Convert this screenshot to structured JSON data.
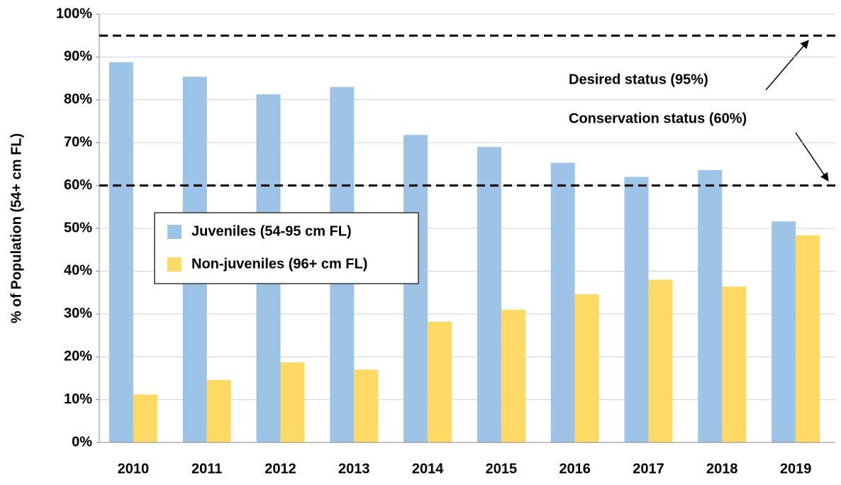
{
  "chart_data": {
    "type": "bar",
    "y_label": "% of Population (54+ cm FL)",
    "categories": [
      "2010",
      "2011",
      "2012",
      "2013",
      "2014",
      "2015",
      "2016",
      "2017",
      "2018",
      "2019"
    ],
    "series": [
      {
        "name": "Juveniles (54-95 cm FL)",
        "color": "#9dc3e6",
        "values": [
          88.8,
          85.4,
          81.3,
          83.0,
          71.8,
          69.0,
          65.3,
          62.0,
          63.6,
          51.6
        ]
      },
      {
        "name": "Non-juveniles (96+ cm FL)",
        "color": "#ffd966",
        "values": [
          11.2,
          14.6,
          18.7,
          17.0,
          28.2,
          31.0,
          34.6,
          38.0,
          36.4,
          48.4
        ]
      }
    ],
    "ylim": [
      0,
      100
    ],
    "yticks": [
      {
        "value": 0,
        "label": "0%"
      },
      {
        "value": 10,
        "label": "10%"
      },
      {
        "value": 20,
        "label": "20%"
      },
      {
        "value": 30,
        "label": "30%"
      },
      {
        "value": 40,
        "label": "40%"
      },
      {
        "value": 50,
        "label": "50%"
      },
      {
        "value": 60,
        "label": "60%"
      },
      {
        "value": 70,
        "label": "70%"
      },
      {
        "value": 80,
        "label": "80%"
      },
      {
        "value": 90,
        "label": "90%"
      },
      {
        "value": 100,
        "label": "100%"
      }
    ],
    "grid": true,
    "reference_lines": [
      {
        "value": 95,
        "label": "Desired status (95%)"
      },
      {
        "value": 60,
        "label": "Conservation status (60%)"
      }
    ]
  }
}
